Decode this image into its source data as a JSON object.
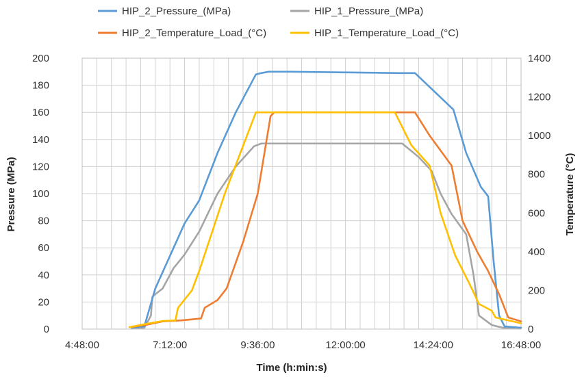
{
  "chart_data": {
    "type": "line",
    "title": "",
    "xlabel": "Time (h:min:s)",
    "ylabel": "Pressure (MPa)",
    "y2label": "Temperature (°C)",
    "x_unit": "hours",
    "xlim": [
      4.8,
      16.8
    ],
    "ylim": [
      0,
      200
    ],
    "y2lim": [
      0,
      1400
    ],
    "x_ticks": [
      {
        "value": 4.8,
        "label": "4:48:00"
      },
      {
        "value": 7.2,
        "label": "7:12:00"
      },
      {
        "value": 9.6,
        "label": "9:36:00"
      },
      {
        "value": 12.0,
        "label": "12:00:00"
      },
      {
        "value": 14.4,
        "label": "14:24:00"
      },
      {
        "value": 16.8,
        "label": "16:48:00"
      }
    ],
    "y_ticks": [
      0,
      20,
      40,
      60,
      80,
      100,
      120,
      140,
      160,
      180,
      200
    ],
    "y2_ticks": [
      0,
      200,
      400,
      600,
      800,
      1000,
      1200,
      1400
    ],
    "grid": true,
    "legend_position": "top",
    "series": [
      {
        "name": "HIP_2_Pressure_(MPa)",
        "color": "#5b9bd5",
        "axis": "left",
        "points": [
          [
            6.15,
            1
          ],
          [
            6.5,
            2
          ],
          [
            6.8,
            30
          ],
          [
            7.0,
            42
          ],
          [
            7.3,
            60
          ],
          [
            7.6,
            78
          ],
          [
            8.0,
            95
          ],
          [
            8.5,
            130
          ],
          [
            9.0,
            160
          ],
          [
            9.55,
            188
          ],
          [
            9.7,
            189
          ],
          [
            9.9,
            190
          ],
          [
            10.5,
            190
          ],
          [
            12.0,
            189.5
          ],
          [
            13.5,
            189
          ],
          [
            13.9,
            189
          ],
          [
            14.95,
            162
          ],
          [
            15.3,
            130
          ],
          [
            15.7,
            105
          ],
          [
            15.9,
            98
          ],
          [
            16.05,
            50
          ],
          [
            16.2,
            10
          ],
          [
            16.35,
            2
          ],
          [
            16.8,
            1
          ]
        ]
      },
      {
        "name": "HIP_1_Pressure_(MPa)",
        "color": "#a5a5a5",
        "axis": "left",
        "points": [
          [
            6.15,
            1
          ],
          [
            6.5,
            1
          ],
          [
            6.68,
            10
          ],
          [
            6.72,
            24
          ],
          [
            7.0,
            30
          ],
          [
            7.3,
            45
          ],
          [
            7.6,
            55
          ],
          [
            8.0,
            72
          ],
          [
            8.5,
            100
          ],
          [
            9.0,
            120
          ],
          [
            9.5,
            135
          ],
          [
            9.7,
            137
          ],
          [
            10.0,
            137
          ],
          [
            12.0,
            137
          ],
          [
            13.55,
            137
          ],
          [
            14.0,
            127
          ],
          [
            14.35,
            117
          ],
          [
            14.6,
            100
          ],
          [
            14.9,
            85
          ],
          [
            15.3,
            70
          ],
          [
            15.5,
            40
          ],
          [
            15.65,
            10
          ],
          [
            16.0,
            3
          ],
          [
            16.3,
            1
          ],
          [
            16.8,
            1
          ]
        ]
      },
      {
        "name": "HIP_2_Temperature_Load_(°C)",
        "color": "#ed7d31",
        "axis": "right",
        "points": [
          [
            6.1,
            10
          ],
          [
            6.5,
            20
          ],
          [
            7.0,
            40
          ],
          [
            7.5,
            45
          ],
          [
            8.05,
            55
          ],
          [
            8.15,
            110
          ],
          [
            8.5,
            150
          ],
          [
            8.75,
            210
          ],
          [
            9.2,
            450
          ],
          [
            9.6,
            700
          ],
          [
            9.95,
            1100
          ],
          [
            10.05,
            1120
          ],
          [
            12.0,
            1120
          ],
          [
            13.9,
            1120
          ],
          [
            14.3,
            1000
          ],
          [
            14.9,
            845
          ],
          [
            15.2,
            560
          ],
          [
            15.6,
            400
          ],
          [
            15.9,
            300
          ],
          [
            16.2,
            180
          ],
          [
            16.45,
            60
          ],
          [
            16.8,
            40
          ]
        ]
      },
      {
        "name": "HIP_1_Temperature_Load_(°C)",
        "color": "#ffc000",
        "axis": "right",
        "points": [
          [
            6.1,
            10
          ],
          [
            6.5,
            25
          ],
          [
            7.0,
            42
          ],
          [
            7.35,
            45
          ],
          [
            7.42,
            110
          ],
          [
            7.8,
            200
          ],
          [
            8.0,
            300
          ],
          [
            8.7,
            700
          ],
          [
            9.55,
            1120
          ],
          [
            12.0,
            1120
          ],
          [
            13.35,
            1120
          ],
          [
            13.8,
            950
          ],
          [
            14.3,
            845
          ],
          [
            14.6,
            600
          ],
          [
            15.0,
            380
          ],
          [
            15.4,
            230
          ],
          [
            15.65,
            130
          ],
          [
            16.0,
            95
          ],
          [
            16.1,
            60
          ],
          [
            16.8,
            30
          ]
        ]
      }
    ]
  }
}
